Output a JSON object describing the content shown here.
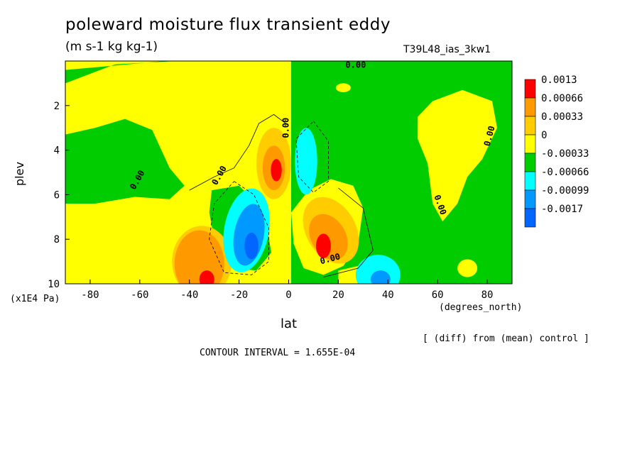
{
  "chart_data": {
    "type": "heatmap",
    "title": "poleward moisture flux transient eddy",
    "units": "(m s-1 kg kg-1)",
    "run_name": "T39L48_ias_3kw1",
    "xlabel": "lat",
    "x_unit": "(degrees_north)",
    "ylabel": "plev",
    "y_unit": "(x1E4 Pa)",
    "xlim": [
      -90,
      90
    ],
    "ylim": [
      10,
      0
    ],
    "x_ticks": [
      "-80",
      "-60",
      "-40",
      "-20",
      "0",
      "20",
      "40",
      "60",
      "80"
    ],
    "y_ticks": [
      "2",
      "4",
      "6",
      "8",
      "10"
    ],
    "legend": {
      "placement": "right",
      "levels": [
        "0.0013",
        "0.00066",
        "0.00033",
        "0",
        "-0.00033",
        "-0.00066",
        "-0.00099",
        "-0.0017"
      ],
      "colors": [
        "#ff0000",
        "#ff9900",
        "#ffcc00",
        "#ffff00",
        "#00cc00",
        "#00ffff",
        "#0099ff",
        "#0066ff"
      ]
    },
    "contour_labels": [
      "0.00",
      "0.00",
      "0.00",
      "0.00",
      "0.00",
      "0.00",
      "0.00"
    ],
    "features": [
      {
        "lat": -5,
        "plev": 4.8,
        "value": 0.0013
      },
      {
        "lat": -15,
        "plev": 8.3,
        "value": -0.0017
      },
      {
        "lat": 7,
        "plev": 4.5,
        "value": -0.00066
      },
      {
        "lat": 15,
        "plev": 8.2,
        "value": 0.0013
      },
      {
        "lat": 35,
        "plev": 9.7,
        "value": -0.00066
      },
      {
        "lat": -33,
        "plev": 9.5,
        "value": 0.00066
      },
      {
        "lat": 75,
        "plev": 3.0,
        "value": 0.0
      }
    ]
  },
  "annotations": {
    "diff_note": "[ (diff) from (mean) control ]",
    "contour_interval": "CONTOUR INTERVAL = 1.655E-04"
  }
}
